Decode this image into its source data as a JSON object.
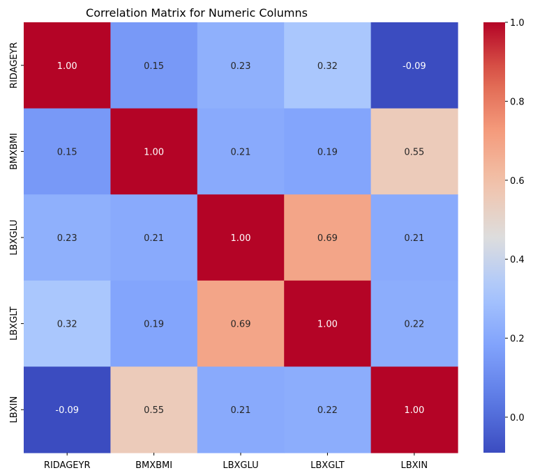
{
  "chart_data": {
    "type": "heatmap",
    "title": "Correlation Matrix for Numeric Columns",
    "xlabel": "",
    "ylabel": "",
    "row_labels": [
      "RIDAGEYR",
      "BMXBMI",
      "LBXGLU",
      "LBXGLT",
      "LBXIN"
    ],
    "column_labels": [
      "RIDAGEYR",
      "BMXBMI",
      "LBXGLU",
      "LBXGLT",
      "LBXIN"
    ],
    "values": [
      [
        1.0,
        0.15,
        0.23,
        0.32,
        -0.09
      ],
      [
        0.15,
        1.0,
        0.21,
        0.19,
        0.55
      ],
      [
        0.23,
        0.21,
        1.0,
        0.69,
        0.21
      ],
      [
        0.32,
        0.19,
        0.69,
        1.0,
        0.22
      ],
      [
        -0.09,
        0.55,
        0.21,
        0.22,
        1.0
      ]
    ],
    "annotation_format": "0.00",
    "colormap": "coolwarm",
    "colorbar": {
      "range": [
        -0.09,
        1.0
      ],
      "ticks": [
        0.0,
        0.2,
        0.4,
        0.6,
        0.8,
        1.0
      ],
      "tick_labels": [
        "0.0",
        "0.2",
        "0.4",
        "0.6",
        "0.8",
        "1.0"
      ],
      "placement": "right"
    },
    "grid": false
  }
}
